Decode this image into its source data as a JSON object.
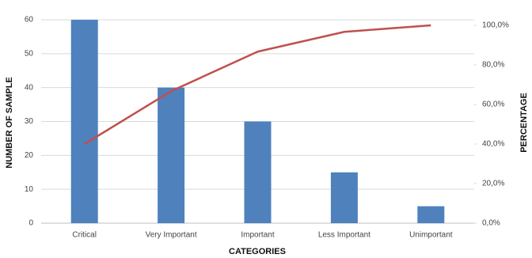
{
  "chart_data": {
    "type": "bar",
    "x_label": "CATEGORIES",
    "y_label": "NUMBER OF SAMPLE",
    "y2_label": "PERCENTAGE",
    "categories": [
      "Critical",
      "Very Important",
      "Important",
      "Less Important",
      "Unimportant"
    ],
    "series": [
      {
        "type": "bar",
        "color": "#4f81bd",
        "values": [
          60,
          40,
          30,
          15,
          5
        ]
      },
      {
        "type": "line",
        "axis": "y2",
        "color": "#c0504d",
        "values": [
          40,
          66.7,
          86.7,
          96.7,
          100
        ]
      }
    ],
    "ylim": [
      0,
      60
    ],
    "yticks": [
      0,
      10,
      20,
      30,
      40,
      50,
      60
    ],
    "y2lim": [
      0,
      102.8
    ],
    "y2ticks": [
      {
        "value": 0,
        "label": "0,0%"
      },
      {
        "value": 20,
        "label": "20,0%"
      },
      {
        "value": 40,
        "label": "40,0%"
      },
      {
        "value": 60,
        "label": "60,0%"
      },
      {
        "value": 80,
        "label": "80,0%"
      },
      {
        "value": 100,
        "label": "100,0%"
      }
    ],
    "grid": true
  }
}
